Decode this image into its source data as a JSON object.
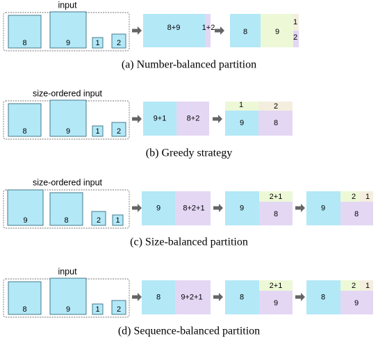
{
  "colors": {
    "blue": "#b3e8f7",
    "purple": "#e3d7f4",
    "green": "#edf8d7",
    "beige": "#f4eedf",
    "stroke": "#356d7f",
    "arrow": "#656565",
    "dashed": "#707070"
  },
  "panels": [
    {
      "title": "input",
      "caption": "(a)  Number-balanced partition",
      "input": [
        "8",
        "9",
        "1",
        "2"
      ],
      "stages": [
        [
          {
            "label": "8+9",
            "color": "blue"
          },
          {
            "label": "1+2",
            "color": "purple"
          }
        ],
        [
          {
            "label": "8",
            "color": "blue"
          },
          {
            "label": "9",
            "color": "green"
          },
          {
            "label": "1",
            "color": "beige"
          },
          {
            "label": "2",
            "color": "purple"
          }
        ]
      ]
    },
    {
      "title": "size-ordered input",
      "caption": "(b)  Greedy strategy",
      "input": [
        "8",
        "9",
        "1",
        "2"
      ],
      "stages": [
        [
          {
            "label": "9+1",
            "color": "blue"
          },
          {
            "label": "8+2",
            "color": "purple"
          }
        ],
        [
          {
            "label": "1",
            "color": "green"
          },
          {
            "label": "2",
            "color": "beige"
          },
          {
            "label": "9",
            "color": "blue"
          },
          {
            "label": "8",
            "color": "purple"
          }
        ]
      ]
    },
    {
      "title": "size-ordered input",
      "caption": "(c)  Size-balanced partition",
      "input": [
        "9",
        "8",
        "2",
        "1"
      ],
      "stages": [
        [
          {
            "label": "9",
            "color": "blue"
          },
          {
            "label": "8+2+1",
            "color": "purple"
          }
        ],
        [
          {
            "label": "9",
            "color": "blue"
          },
          {
            "label": "2+1",
            "color": "green"
          },
          {
            "label": "8",
            "color": "purple"
          }
        ],
        [
          {
            "label": "9",
            "color": "blue"
          },
          {
            "label": "2",
            "color": "green"
          },
          {
            "label": "1",
            "color": "beige"
          },
          {
            "label": "8",
            "color": "purple"
          }
        ]
      ]
    },
    {
      "title": "input",
      "caption": "(d)  Sequence-balanced partition",
      "input": [
        "8",
        "9",
        "1",
        "2"
      ],
      "stages": [
        [
          {
            "label": "8",
            "color": "blue"
          },
          {
            "label": "9+2+1",
            "color": "purple"
          }
        ],
        [
          {
            "label": "8",
            "color": "blue"
          },
          {
            "label": "2+1",
            "color": "green"
          },
          {
            "label": "9",
            "color": "purple"
          }
        ],
        [
          {
            "label": "8",
            "color": "blue"
          },
          {
            "label": "2",
            "color": "green"
          },
          {
            "label": "1",
            "color": "beige"
          },
          {
            "label": "9",
            "color": "purple"
          }
        ]
      ]
    }
  ]
}
